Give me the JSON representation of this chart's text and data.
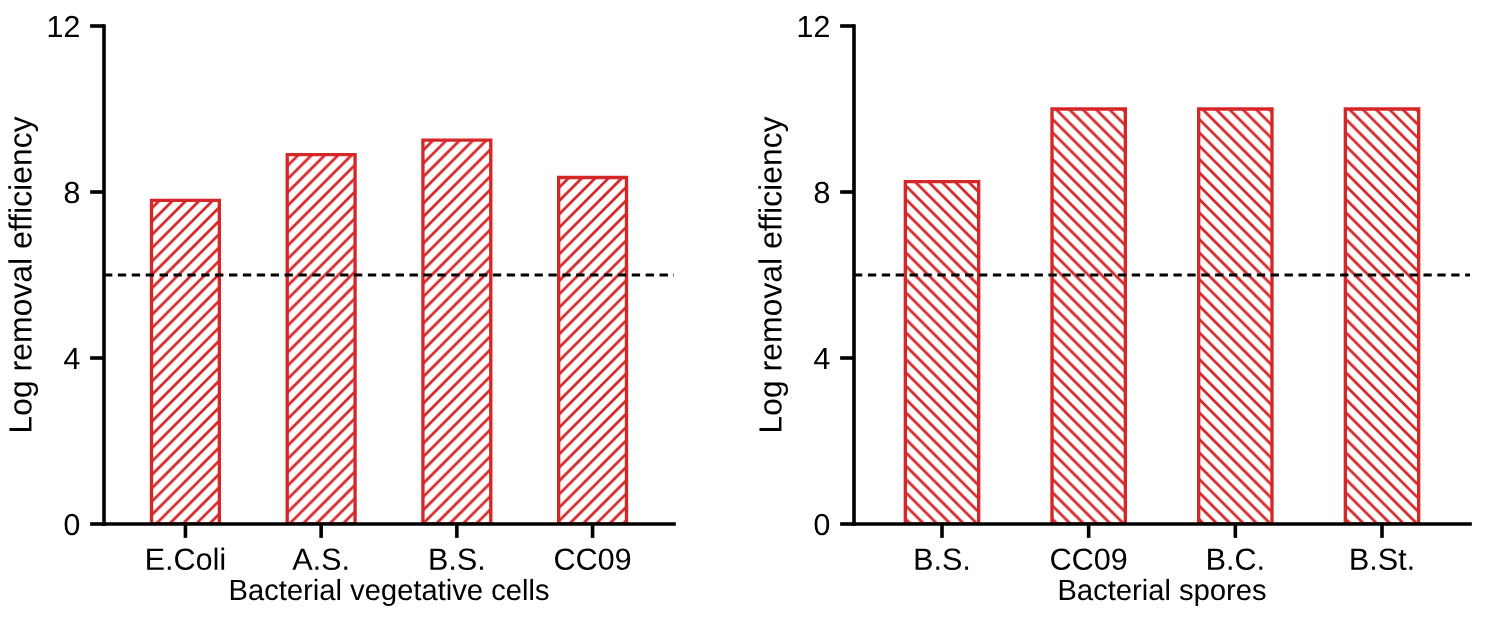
{
  "chart_data": [
    {
      "type": "bar",
      "ylabel": "Log removal efficiency",
      "xlabel": "Bacterial vegetative cells",
      "categories": [
        "E.Coli",
        "A.S.",
        "B.S.",
        "CC09"
      ],
      "series": [
        {
          "color": "#d62728",
          "values": [
            7.8,
            8.9,
            9.25,
            8.35
          ]
        }
      ],
      "ylim": [
        0,
        12
      ],
      "yticks": [
        0,
        4,
        8,
        12
      ],
      "grid": false,
      "legend": false,
      "ref_lines": [
        {
          "axis": "y",
          "value": 6,
          "color": "#000000",
          "line_style": "dashed"
        }
      ]
    },
    {
      "type": "bar",
      "ylabel": "Log removal efficiency",
      "xlabel": "Bacterial spores",
      "categories": [
        "B.S.",
        "CC09",
        "B.C.",
        "B.St."
      ],
      "series": [
        {
          "color": "#d62728",
          "values": [
            8.25,
            10,
            10,
            10
          ]
        }
      ],
      "ylim": [
        0,
        12
      ],
      "yticks": [
        0,
        4,
        8,
        12
      ],
      "grid": false,
      "legend": false,
      "ref_lines": [
        {
          "axis": "y",
          "value": 6,
          "color": "#000000",
          "line_style": "dashed"
        }
      ]
    }
  ]
}
